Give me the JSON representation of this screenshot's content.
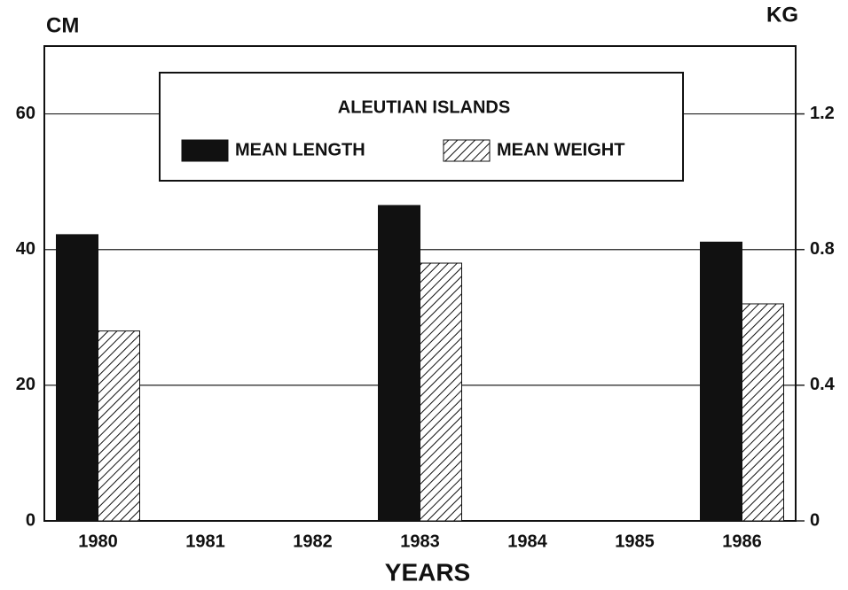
{
  "chart_data": {
    "type": "bar",
    "y_label": "CM",
    "y2_label": "KG",
    "x_label": "YEARS",
    "legend_title": "ALEUTIAN ISLANDS",
    "categories": [
      "1980",
      "1981",
      "1982",
      "1983",
      "1984",
      "1985",
      "1986"
    ],
    "series": [
      {
        "name": "MEAN LENGTH",
        "color": "#111111",
        "hatch": false,
        "values": [
          42.2,
          null,
          null,
          46.5,
          null,
          null,
          41.1
        ]
      },
      {
        "name": "MEAN WEIGHT",
        "color": "#111111",
        "hatch": true,
        "axis": "y2",
        "values": [
          0.56,
          null,
          null,
          0.76,
          null,
          null,
          0.64
        ]
      }
    ],
    "ylim": [
      0,
      70
    ],
    "yticks": [
      0,
      20,
      40,
      60
    ],
    "y2lim": [
      0,
      1.4
    ],
    "y2ticks": [
      0,
      0.4,
      0.8,
      1.2
    ],
    "grid": true
  }
}
